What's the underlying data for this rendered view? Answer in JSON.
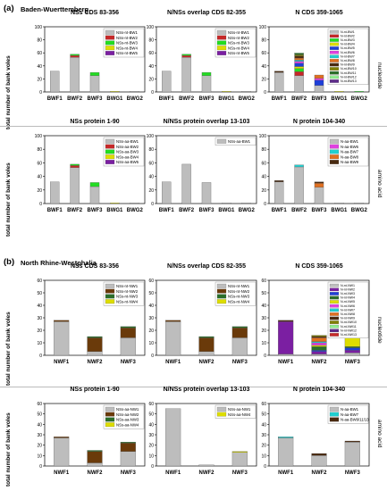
{
  "sections": [
    {
      "label": "(a)",
      "region": "Baden-Wuerttemberg",
      "row_labels": [
        "nucleotide",
        "amino acid"
      ],
      "ylabel": "total number of bank voles",
      "categories": [
        "BWF1",
        "BWF2",
        "BWF3",
        "BWG1",
        "BWG2"
      ],
      "charts": [
        {
          "title": "NSs CDS 83-356",
          "ymax": 100,
          "legend": [
            {
              "name": "NSs-nt-BW1",
              "color": "#bdbdbd"
            },
            {
              "name": "NSs-nt-BW2",
              "color": "#c62828"
            },
            {
              "name": "NSs-nt-BW3",
              "color": "#22dd22"
            },
            {
              "name": "NSs-nt-BW4",
              "color": "#dddd00"
            },
            {
              "name": "NSs-nt-BW5",
              "color": "#7b1fa2"
            }
          ],
          "stacks": [
            [
              32,
              0,
              0,
              0,
              0
            ],
            [
              53,
              3,
              2,
              0,
              0
            ],
            [
              25,
              0,
              5,
              0,
              0
            ],
            [
              0,
              0,
              0,
              1,
              0
            ],
            [
              1,
              0,
              0,
              0,
              0
            ]
          ]
        },
        {
          "title": "N/NSs overlap CDS 82-355",
          "ymax": 100,
          "legend": [
            {
              "name": "NSs-nt-BW1",
              "color": "#bdbdbd"
            },
            {
              "name": "NSs-nt-BW2",
              "color": "#c62828"
            },
            {
              "name": "NSs-nt-BW3",
              "color": "#22dd22"
            },
            {
              "name": "NSs-nt-BW4",
              "color": "#dddd00"
            },
            {
              "name": "NSs-nt-BW5",
              "color": "#7b1fa2"
            }
          ],
          "stacks": [
            [
              32,
              0,
              0,
              0,
              0
            ],
            [
              53,
              3,
              2,
              0,
              0
            ],
            [
              25,
              0,
              5,
              0,
              0
            ],
            [
              0,
              0,
              0,
              1,
              0
            ],
            [
              1,
              0,
              0,
              0,
              0
            ]
          ]
        },
        {
          "title": "N CDS 359-1065",
          "ymax": 100,
          "legend": [
            {
              "name": "N-nt-BW1",
              "color": "#bdbdbd"
            },
            {
              "name": "N-nt-BW2",
              "color": "#c62828"
            },
            {
              "name": "N-nt-BW3",
              "color": "#22dd22"
            },
            {
              "name": "N-nt-BW4",
              "color": "#dddd00"
            },
            {
              "name": "N-nt-BW5",
              "color": "#1e3fd8"
            },
            {
              "name": "N-nt-BW6",
              "color": "#e040e0"
            },
            {
              "name": "N-nt-BW7",
              "color": "#20d0d0"
            },
            {
              "name": "N-nt-BW8",
              "color": "#e07020"
            },
            {
              "name": "N-nt-BW9",
              "color": "#4a2a10"
            },
            {
              "name": "N-nt-BW10",
              "color": "#808000"
            },
            {
              "name": "N-nt-BW11",
              "color": "#2a6e2a"
            },
            {
              "name": "N-nt-BW12",
              "color": "#90ee90"
            },
            {
              "name": "N-nt-BW13",
              "color": "#5d2a8a"
            }
          ],
          "stacks": [
            [
              30,
              0,
              0,
              0,
              0,
              0,
              0,
              0,
              2,
              0,
              0,
              0,
              0
            ],
            [
              25,
              6,
              5,
              3,
              5,
              3,
              2,
              3,
              3,
              2,
              2,
              1,
              0
            ],
            [
              10,
              0,
              0,
              0,
              8,
              3,
              0,
              5,
              0,
              0,
              0,
              0,
              0
            ],
            [
              0,
              0,
              0,
              1,
              0,
              0,
              0,
              0,
              0,
              0,
              0,
              0,
              0
            ],
            [
              0,
              0,
              1,
              0,
              0,
              0,
              0,
              0,
              0,
              0,
              0,
              0,
              0
            ]
          ]
        },
        {
          "title": "NSs protein 1-90",
          "ymax": 100,
          "legend": [
            {
              "name": "NSs-aa-BW1",
              "color": "#bdbdbd"
            },
            {
              "name": "NSs-aa-BW2",
              "color": "#c62828"
            },
            {
              "name": "NSs-aa-BW3",
              "color": "#22dd22"
            },
            {
              "name": "NSs-aa-BW4",
              "color": "#dddd00"
            },
            {
              "name": "NSs-aa-BW5",
              "color": "#7b1fa2"
            }
          ],
          "stacks": [
            [
              32,
              0,
              0,
              0,
              0
            ],
            [
              53,
              3,
              2,
              0,
              0
            ],
            [
              25,
              0,
              6,
              0,
              0
            ],
            [
              0,
              0,
              0,
              1,
              0
            ],
            [
              1,
              0,
              0,
              0,
              0
            ]
          ]
        },
        {
          "title": "N/NSs protein overlap 13-103",
          "ymax": 100,
          "legend": [
            {
              "name": "NSs-aa-BW1",
              "color": "#bdbdbd"
            }
          ],
          "stacks": [
            [
              32
            ],
            [
              58
            ],
            [
              31
            ],
            [
              1
            ],
            [
              1
            ]
          ]
        },
        {
          "title": "N protein 104-340",
          "ymax": 100,
          "legend": [
            {
              "name": "N-aa-BW1",
              "color": "#bdbdbd"
            },
            {
              "name": "N-aa-BW6",
              "color": "#e040e0"
            },
            {
              "name": "N-aa-BW7",
              "color": "#20d0d0"
            },
            {
              "name": "N-aa-BW8",
              "color": "#e07020"
            },
            {
              "name": "N-aa-BW9",
              "color": "#4a2a10"
            }
          ],
          "stacks": [
            [
              32,
              0,
              0,
              0,
              2
            ],
            [
              54,
              0,
              3,
              0,
              0
            ],
            [
              24,
              0,
              0,
              6,
              2
            ],
            [
              1,
              0,
              0,
              0,
              0
            ],
            [
              1,
              0,
              0,
              0,
              0
            ]
          ]
        }
      ]
    },
    {
      "label": "(b)",
      "region": "North Rhine-Westphalia",
      "row_labels": [
        "nucleotide",
        "amino acid"
      ],
      "ylabel": "total number of bank voles",
      "categories": [
        "NWF1",
        "NWF2",
        "NWF3"
      ],
      "charts": [
        {
          "title": "NSs CDS 83-356",
          "ymax": 60,
          "legend": [
            {
              "name": "NSs-nt-NW1",
              "color": "#bdbdbd"
            },
            {
              "name": "NSs-nt-NW2",
              "color": "#6a3a0a"
            },
            {
              "name": "NSs-nt-NW3",
              "color": "#2a6e2a"
            },
            {
              "name": "NSs-nt-NW4",
              "color": "#dddd00"
            }
          ],
          "stacks": [
            [
              27,
              1,
              0,
              0
            ],
            [
              3,
              11,
              1,
              0
            ],
            [
              14,
              8,
              1,
              0
            ]
          ]
        },
        {
          "title": "N/NSs overlap CDS 82-355",
          "ymax": 60,
          "legend": [
            {
              "name": "NSs-nt-NW1",
              "color": "#bdbdbd"
            },
            {
              "name": "NSs-nt-NW2",
              "color": "#6a3a0a"
            },
            {
              "name": "NSs-nt-NW3",
              "color": "#2a6e2a"
            },
            {
              "name": "NSs-nt-NW4",
              "color": "#dddd00"
            }
          ],
          "stacks": [
            [
              27,
              1,
              0,
              0
            ],
            [
              3,
              11,
              1,
              0
            ],
            [
              14,
              8,
              1,
              0
            ]
          ]
        },
        {
          "title": "N CDS 359-1065",
          "ymax": 60,
          "legend": [
            {
              "name": "N-nt-NW1",
              "color": "#bdbdbd"
            },
            {
              "name": "N-nt-NW2",
              "color": "#7b1fa2"
            },
            {
              "name": "N-nt-NW3",
              "color": "#1e3fd8"
            },
            {
              "name": "N-nt-NW4",
              "color": "#2a6e2a"
            },
            {
              "name": "N-nt-NW5",
              "color": "#dddd00"
            },
            {
              "name": "N-nt-NW6",
              "color": "#e040e0"
            },
            {
              "name": "N-nt-NW7",
              "color": "#20d0d0"
            },
            {
              "name": "N-nt-NW8",
              "color": "#e07020"
            },
            {
              "name": "N-nt-NW9",
              "color": "#4a2a10"
            },
            {
              "name": "N-nt-NW10",
              "color": "#808000"
            },
            {
              "name": "N-nt-NW11",
              "color": "#90ee90"
            },
            {
              "name": "N-nt-NW12",
              "color": "#5d2a8a"
            },
            {
              "name": "N-nt-NW13",
              "color": "#c62828"
            }
          ],
          "stacks": [
            [
              1,
              26,
              0,
              0,
              0,
              0,
              0,
              0,
              1,
              0,
              0,
              0,
              0
            ],
            [
              1,
              2,
              1,
              3,
              1,
              2,
              1,
              3,
              1,
              1,
              0,
              0,
              0
            ],
            [
              2,
              2,
              2,
              1,
              9,
              2,
              1,
              2,
              1,
              1,
              0,
              0,
              1
            ]
          ]
        },
        {
          "title": "NSs protein 1-90",
          "ymax": 60,
          "legend": [
            {
              "name": "NSs-aa-NW1",
              "color": "#bdbdbd"
            },
            {
              "name": "NSs-aa-NW2",
              "color": "#6a3a0a"
            },
            {
              "name": "NSs-aa-NW3",
              "color": "#2a6e2a"
            },
            {
              "name": "NSs-aa-NW4",
              "color": "#dddd00"
            }
          ],
          "stacks": [
            [
              27,
              1,
              0,
              0
            ],
            [
              3,
              11,
              1,
              0
            ],
            [
              14,
              8,
              1,
              0
            ]
          ]
        },
        {
          "title": "N/NSs protein overlap 13-103",
          "ymax": 60,
          "legend": [
            {
              "name": "NSs-aa-NW1",
              "color": "#bdbdbd"
            },
            {
              "name": "NSs-aa-NW4",
              "color": "#dddd00"
            }
          ],
          "stacks": [
            [
              55,
              0
            ],
            [
              1,
              0
            ],
            [
              13,
              1
            ]
          ]
        },
        {
          "title": "N protein 104-340",
          "ymax": 60,
          "legend": [
            {
              "name": "N-aa-BW1",
              "color": "#bdbdbd"
            },
            {
              "name": "N-aa-BW7",
              "color": "#20d0d0"
            },
            {
              "name": "N-aa-BW9/11/13",
              "color": "#4a2a10"
            }
          ],
          "stacks": [
            [
              27,
              1,
              0
            ],
            [
              10,
              0,
              2
            ],
            [
              23,
              0,
              1
            ]
          ]
        }
      ]
    }
  ]
}
